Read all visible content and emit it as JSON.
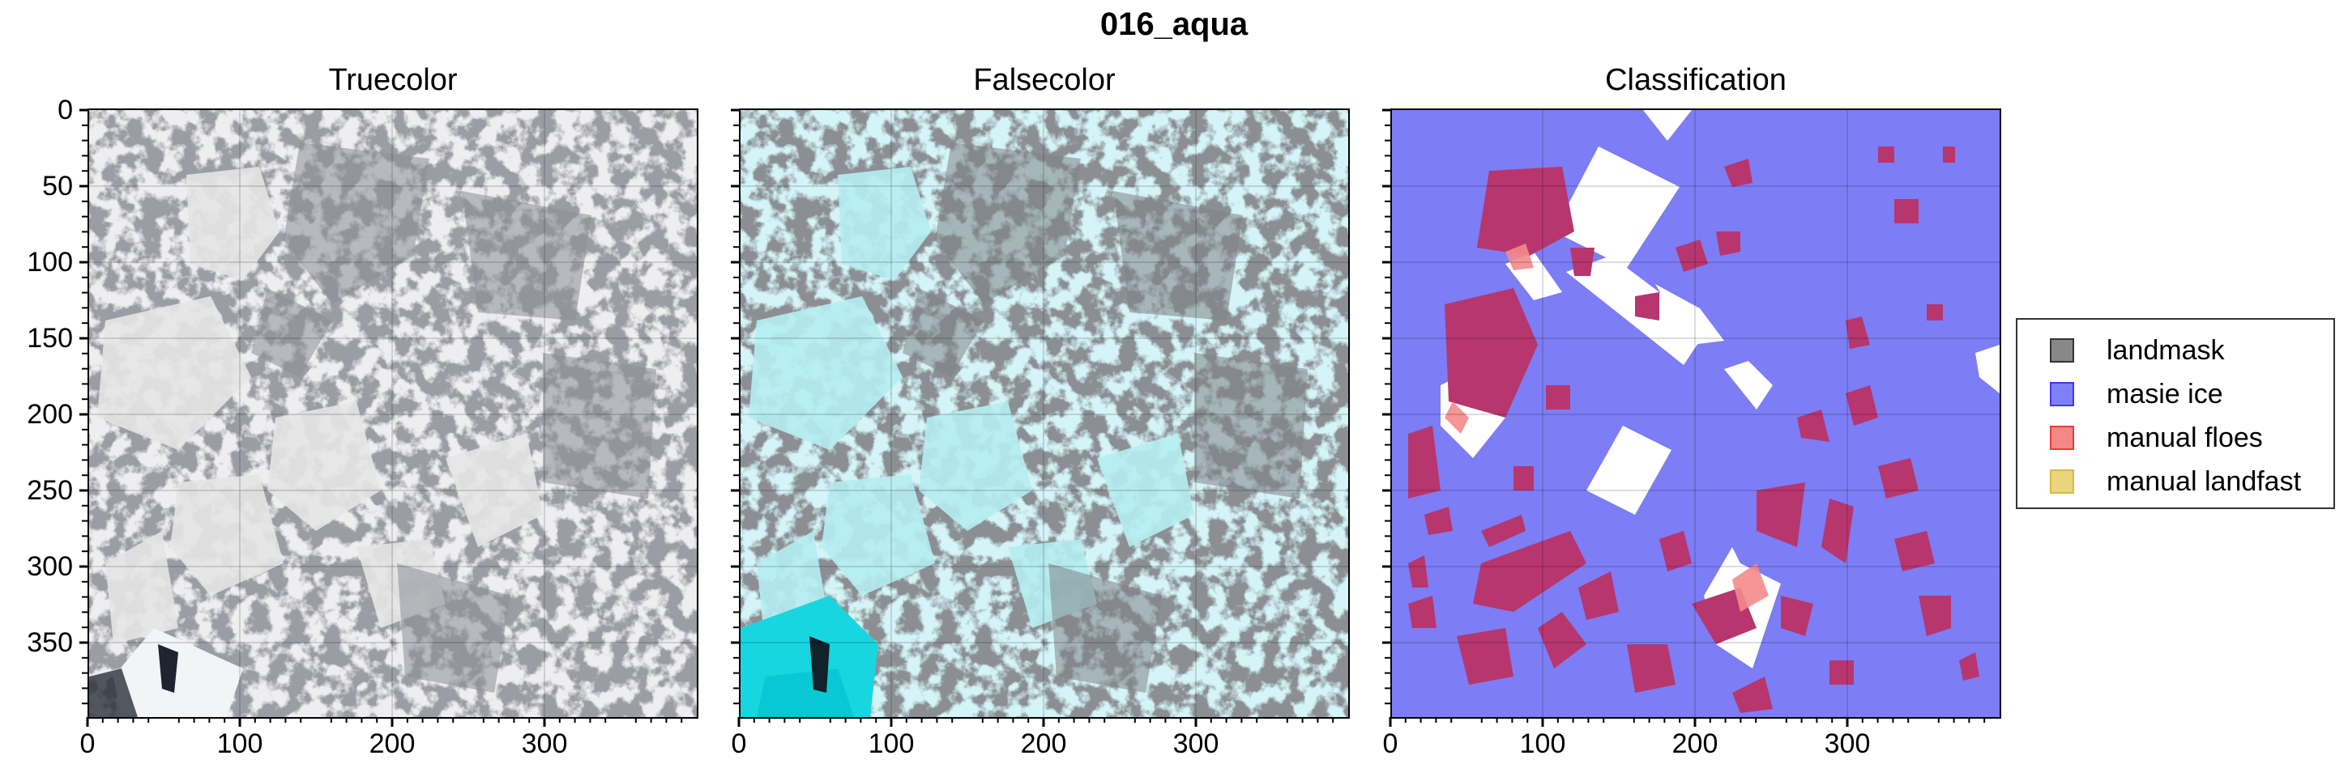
{
  "figure": {
    "title": "016_aqua"
  },
  "panels": [
    {
      "title": "Truecolor"
    },
    {
      "title": "Falsecolor"
    },
    {
      "title": "Classification"
    }
  ],
  "axes": {
    "yticks": [
      "0",
      "50",
      "100",
      "150",
      "200",
      "250",
      "300",
      "350"
    ],
    "xticks": [
      "0",
      "100",
      "200",
      "300"
    ]
  },
  "legend": {
    "entries": [
      {
        "label": "landmask",
        "color": "#666666"
      },
      {
        "label": "masie ice",
        "color": "#7b7bf4"
      },
      {
        "label": "manual floes",
        "color": "#f48a8a"
      },
      {
        "label": "manual landfast",
        "color": "#e9d27a"
      }
    ]
  },
  "colors": {
    "truecolor_ice": "#dcdcdc",
    "truecolor_water": "#9a9ca4",
    "falsecolor_ice": "#a9e3e9",
    "falsecolor_water": "#8a8e92",
    "classification_ice": "#7d7df5",
    "classification_floes": "#b7366e"
  }
}
